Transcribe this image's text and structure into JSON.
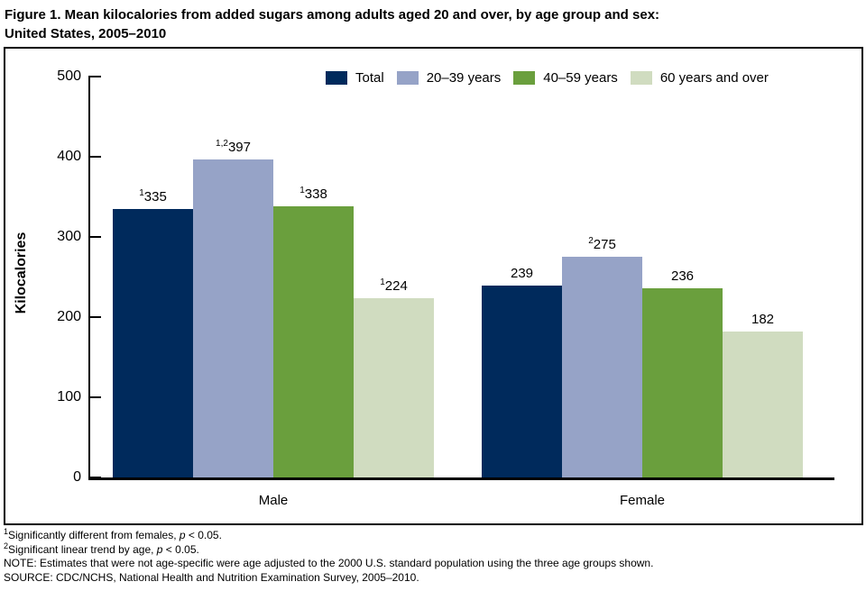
{
  "title": {
    "line1": "Figure 1. Mean kilocalories from added sugars among adults aged 20 and over, by age group and sex:",
    "line2": "United States, 2005–2010"
  },
  "chart_data": {
    "type": "bar",
    "title": "Mean kilocalories from added sugars among adults aged 20 and over, by age group and sex: United States, 2005–2010",
    "ylabel": "Kilocalories",
    "xlabel": "",
    "ylim": [
      0,
      500
    ],
    "yticks": [
      0,
      100,
      200,
      300,
      400,
      500
    ],
    "grid": false,
    "legend_position": "top-right",
    "groups": [
      "Male",
      "Female"
    ],
    "series": [
      {
        "name": "Total",
        "color": "#002a5c",
        "values": [
          335,
          239
        ],
        "sups": [
          "1",
          ""
        ]
      },
      {
        "name": "20–39 years",
        "color": "#96a3c7",
        "values": [
          397,
          275
        ],
        "sups": [
          "1,2",
          "2"
        ]
      },
      {
        "name": "40–59 years",
        "color": "#6a9f3d",
        "values": [
          338,
          236
        ],
        "sups": [
          "1",
          ""
        ]
      },
      {
        "name": "60 years and over",
        "color": "#d0dcc0",
        "values": [
          224,
          182
        ],
        "sups": [
          "1",
          ""
        ]
      }
    ]
  },
  "footnotes": [
    {
      "sup": "1",
      "pre": "Significantly different from females, ",
      "italic": "p",
      "post": " < 0.05."
    },
    {
      "sup": "2",
      "pre": "Significant linear trend by age, ",
      "italic": "p",
      "post": " < 0.05."
    },
    {
      "sup": "",
      "pre": "NOTE: Estimates that were not age-specific were age adjusted to the 2000 U.S. standard population using the three age groups shown.",
      "italic": "",
      "post": ""
    },
    {
      "sup": "",
      "pre": "SOURCE: CDC/NCHS, National Health and Nutrition Examination Survey, 2005–2010.",
      "italic": "",
      "post": ""
    }
  ]
}
